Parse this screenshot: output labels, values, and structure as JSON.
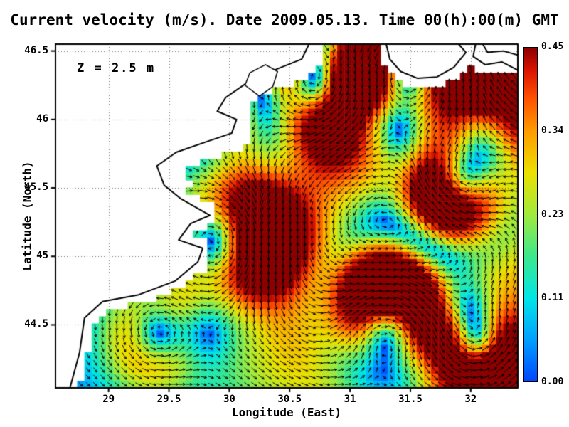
{
  "chart_data": {
    "type": "heatmap",
    "subtype": "vector-field-quiver",
    "title": "Current velocity (m/s). Date 2009.05.13. Time 00(h):00(m) GMT",
    "xlabel": "Longitude (East)",
    "ylabel": "Latitude (North)",
    "annotation": "Z = 2.5 m",
    "velocity_unit": "m/s",
    "xlim": [
      28.56,
      32.39
    ],
    "ylim": [
      44.04,
      46.55
    ],
    "xtick_values": [
      29,
      29.5,
      30,
      30.5,
      31,
      31.5,
      32
    ],
    "xtick_labels": [
      "29",
      "29.5",
      "30",
      "30.5",
      "31",
      "31.5",
      "32"
    ],
    "ytick_values": [
      44.5,
      45,
      45.5,
      46,
      46.5
    ],
    "ytick_labels": [
      "44.5",
      "45",
      "45.5",
      "46",
      "46.5"
    ],
    "grid": "dotted",
    "colorbar": {
      "min": 0.0,
      "max": 0.45,
      "tick_labels": [
        "0.45",
        "0.34",
        "0.23",
        "0.11",
        "0.00"
      ],
      "tick_positions": [
        1,
        0.75,
        0.5,
        0.25,
        0
      ]
    },
    "colormap_stops": [
      [
        0.0,
        "#0046ff"
      ],
      [
        0.125,
        "#00a0ff"
      ],
      [
        0.25,
        "#00e6e6"
      ],
      [
        0.375,
        "#3ce88c"
      ],
      [
        0.5,
        "#a0eb3c"
      ],
      [
        0.625,
        "#ebe100"
      ],
      [
        0.75,
        "#ff9b00"
      ],
      [
        0.85,
        "#ff5000"
      ],
      [
        0.93,
        "#dc1400"
      ],
      [
        1.0,
        "#8c0000"
      ]
    ],
    "land": [
      [
        [
          28.56,
          44.04
        ],
        [
          28.68,
          44.04
        ],
        [
          28.76,
          44.3
        ],
        [
          28.8,
          44.55
        ],
        [
          28.95,
          44.67
        ],
        [
          29.25,
          44.72
        ],
        [
          29.55,
          44.82
        ],
        [
          29.74,
          44.96
        ],
        [
          29.78,
          45.06
        ],
        [
          29.58,
          45.12
        ],
        [
          29.68,
          45.24
        ],
        [
          29.84,
          45.3
        ],
        [
          29.6,
          45.42
        ],
        [
          29.46,
          45.52
        ],
        [
          29.4,
          45.66
        ],
        [
          29.56,
          45.76
        ],
        [
          29.82,
          45.84
        ],
        [
          30.02,
          45.9
        ],
        [
          30.06,
          46.0
        ],
        [
          29.9,
          46.06
        ],
        [
          29.97,
          46.16
        ],
        [
          30.15,
          46.27
        ],
        [
          30.4,
          46.37
        ],
        [
          30.6,
          46.44
        ],
        [
          30.66,
          46.55
        ],
        [
          28.56,
          46.55
        ]
      ],
      [
        [
          31.3,
          46.55
        ],
        [
          31.33,
          46.44
        ],
        [
          31.42,
          46.35
        ],
        [
          31.56,
          46.3
        ],
        [
          31.72,
          46.31
        ],
        [
          31.86,
          46.38
        ],
        [
          31.96,
          46.49
        ],
        [
          31.9,
          46.55
        ]
      ],
      [
        [
          32.04,
          46.55
        ],
        [
          32.02,
          46.46
        ],
        [
          32.12,
          46.4
        ],
        [
          32.26,
          46.42
        ],
        [
          32.39,
          46.36
        ],
        [
          32.39,
          46.47
        ],
        [
          32.27,
          46.5
        ],
        [
          32.14,
          46.49
        ],
        [
          32.1,
          46.55
        ]
      ]
    ],
    "lakes": [
      [
        [
          30.13,
          46.25
        ],
        [
          30.25,
          46.17
        ],
        [
          30.36,
          46.24
        ],
        [
          30.4,
          46.35
        ],
        [
          30.3,
          46.4
        ],
        [
          30.17,
          46.34
        ]
      ]
    ],
    "flow_features": [
      {
        "x": 31.5,
        "y": 46.42,
        "sx": 0.38,
        "sy": 0.3,
        "a": -0.26
      },
      {
        "x": 30.72,
        "y": 46.28,
        "sx": 0.3,
        "sy": 0.3,
        "a": 0.18
      },
      {
        "x": 31.4,
        "y": 45.12,
        "sx": 0.95,
        "sy": 0.75,
        "a": -0.5
      },
      {
        "x": 31.9,
        "y": 45.52,
        "sx": 0.27,
        "sy": 0.27,
        "a": 0.17
      },
      {
        "x": 32.08,
        "y": 44.32,
        "sx": 0.24,
        "sy": 0.24,
        "a": -0.12
      },
      {
        "x": 31.32,
        "y": 44.56,
        "sx": 0.3,
        "sy": 0.3,
        "a": 0.22
      },
      {
        "x": 29.98,
        "y": 45.12,
        "sx": 0.33,
        "sy": 0.33,
        "a": 0.2
      },
      {
        "x": 30.25,
        "y": 46.55,
        "sx": 0.4,
        "sy": 0.4,
        "a": -0.16
      },
      {
        "x": 32.55,
        "y": 46.45,
        "sx": 0.45,
        "sy": 0.45,
        "a": 0.22
      },
      {
        "x": 29.38,
        "y": 44.42,
        "sx": 0.25,
        "sy": 0.25,
        "a": -0.09
      },
      {
        "x": 29.85,
        "y": 46.18,
        "sx": 0.22,
        "sy": 0.22,
        "a": 0.1
      }
    ],
    "background_flow": {
      "u": 0.025,
      "v": -0.015
    }
  }
}
